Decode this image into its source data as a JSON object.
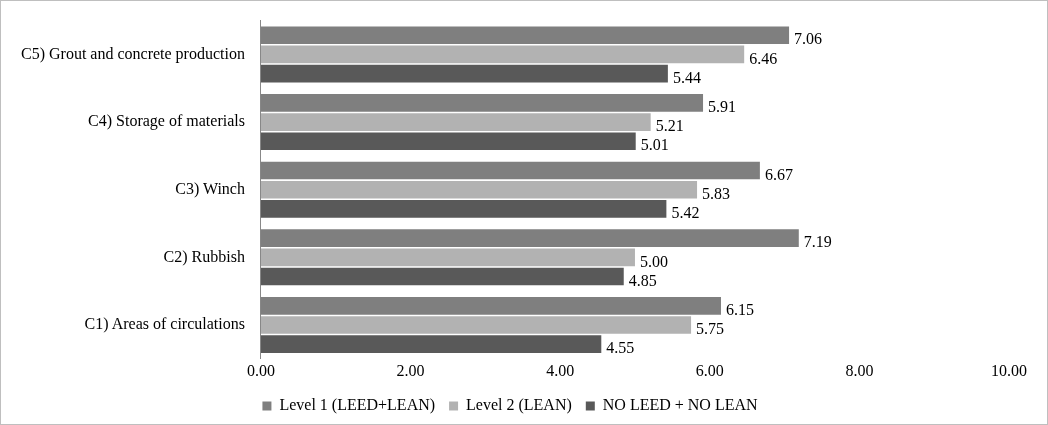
{
  "chart_data": {
    "type": "bar",
    "orientation": "horizontal",
    "categories": [
      "C5) Grout and concrete production",
      "C4) Storage of materials",
      "C3) Winch",
      "C2) Rubbish",
      "C1) Areas of circulations"
    ],
    "series": [
      {
        "name": "Level 1 (LEED+LEAN)",
        "color": "#7f7f7f",
        "values": [
          7.06,
          5.91,
          6.67,
          7.19,
          6.15
        ],
        "value_labels": [
          "7.06",
          "5.91",
          "6.67",
          "7.19",
          "6.15"
        ]
      },
      {
        "name": "Level 2 (LEAN)",
        "color": "#b2b2b2",
        "values": [
          6.46,
          5.21,
          5.83,
          5.0,
          5.75
        ],
        "value_labels": [
          "6.46",
          "5.21",
          "5.83",
          "5.00",
          "5.75"
        ]
      },
      {
        "name": "NO LEED + NO LEAN",
        "color": "#595959",
        "values": [
          5.44,
          5.01,
          5.42,
          4.85,
          4.55
        ],
        "value_labels": [
          "5.44",
          "5.01",
          "5.42",
          "4.85",
          "4.55"
        ]
      }
    ],
    "xlim": [
      0,
      10
    ],
    "xticks": [
      {
        "value": 0,
        "label": "0.00"
      },
      {
        "value": 2,
        "label": "2.00"
      },
      {
        "value": 4,
        "label": "4.00"
      },
      {
        "value": 6,
        "label": "6.00"
      },
      {
        "value": 8,
        "label": "8.00"
      },
      {
        "value": 10,
        "label": "10.00"
      }
    ],
    "grid": false,
    "legend": "bottom"
  }
}
